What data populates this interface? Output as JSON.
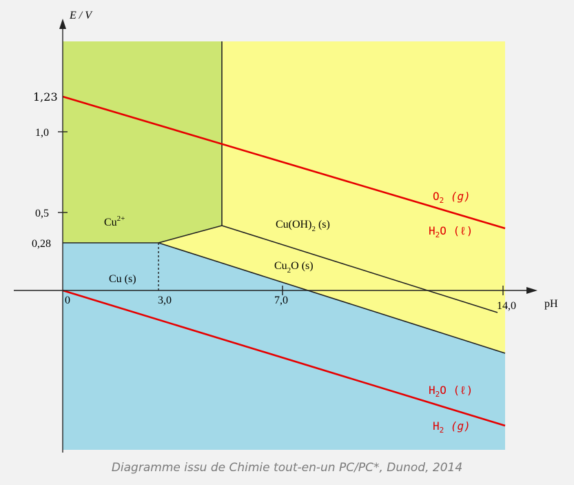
{
  "diagram": {
    "y_axis_label": "E / V",
    "x_axis_label": "pH",
    "y_ticks": [
      "1,23",
      "1,0",
      "0,5",
      "0,28"
    ],
    "x_ticks": [
      "0",
      "3,0",
      "7,0",
      "14,0"
    ],
    "regions": {
      "cu2plus": {
        "label": "Cu",
        "sup": "2+",
        "color": "#cde672"
      },
      "cuoh2": {
        "label": "Cu(OH)",
        "sub": "2",
        "suffix": " (s)",
        "color": "#fbfb8c"
      },
      "cu2o": {
        "label": "Cu",
        "sub": "2",
        "suffix": "O (s)"
      },
      "cu": {
        "label": "Cu (s)",
        "color": "#a3d9e8"
      }
    },
    "water_lines": {
      "color": "#e60000",
      "o2": {
        "label": "O",
        "sub": "2",
        "suffix": " (g)"
      },
      "h2o_top": {
        "label": "H",
        "sub": "2",
        "suffix": "O (ℓ)"
      },
      "h2o_bottom": {
        "label": "H",
        "sub": "2",
        "suffix": "O (ℓ)"
      },
      "h2": {
        "label": "H",
        "sub": "2",
        "suffix": " (g)"
      }
    }
  },
  "caption": "Diagramme issu de Chimie tout-en-un PC/PC*, Dunod, 2014"
}
